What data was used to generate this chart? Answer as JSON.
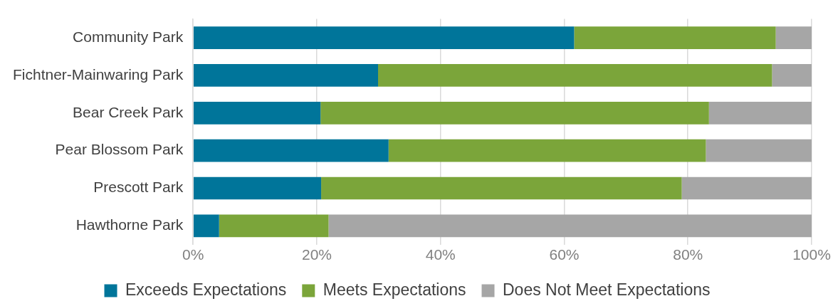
{
  "chart_data": {
    "type": "bar",
    "orientation": "horizontal",
    "stacked": true,
    "categories": [
      "Community Park",
      "Fichtner-Mainwaring Park",
      "Bear Creek Park",
      "Pear Blossom Park",
      "Prescott Park",
      "Hawthorne Park"
    ],
    "series": [
      {
        "name": "Exceeds Expectations",
        "color": "#00759a",
        "values": [
          61.6,
          29.9,
          20.6,
          31.6,
          20.7,
          4.2
        ]
      },
      {
        "name": "Meets Expectations",
        "color": "#7ba53a",
        "values": [
          32.6,
          63.7,
          62.8,
          51.3,
          58.3,
          17.7
        ]
      },
      {
        "name": "Does Not Meet Expectations",
        "color": "#a6a6a6",
        "values": [
          5.8,
          6.4,
          16.6,
          17.1,
          21.0,
          78.1
        ]
      }
    ],
    "xlim": [
      0,
      100
    ],
    "xticks": [
      {
        "value": 0,
        "label": "0%"
      },
      {
        "value": 20,
        "label": "20%"
      },
      {
        "value": 40,
        "label": "40%"
      },
      {
        "value": 60,
        "label": "60%"
      },
      {
        "value": 80,
        "label": "80%"
      },
      {
        "value": 100,
        "label": "100%"
      }
    ],
    "grid": "x",
    "legend": "bottom"
  }
}
